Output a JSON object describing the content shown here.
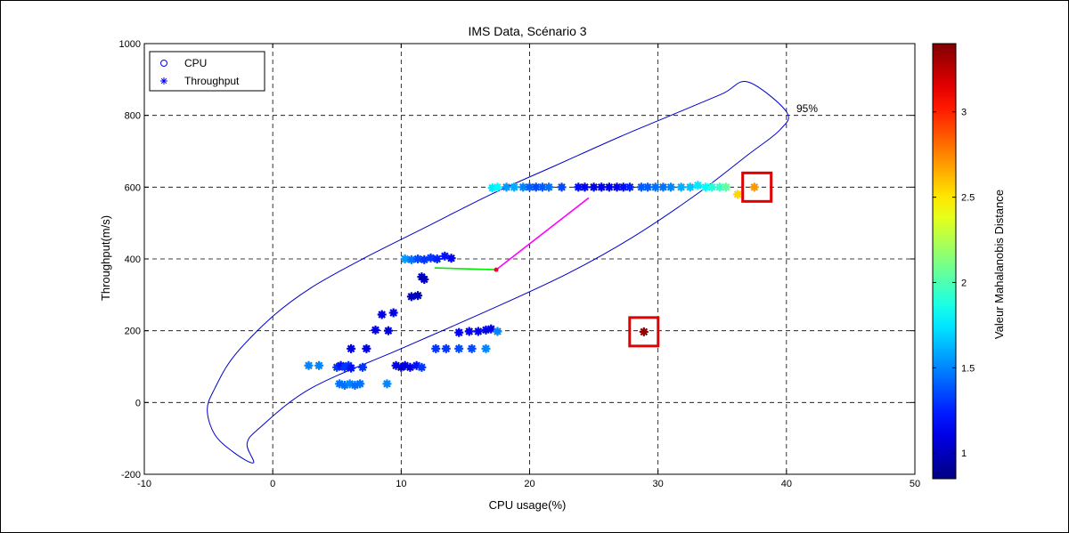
{
  "chart_data": {
    "type": "scatter",
    "title": "IMS Data, Scénario 3",
    "xlabel": "CPU usage(%)",
    "ylabel": "Throughput(m/s)",
    "xlim": [
      -10,
      50
    ],
    "ylim": [
      -200,
      1000
    ],
    "xticks": [
      "-10",
      "0",
      "10",
      "20",
      "30",
      "40",
      "50"
    ],
    "yticks": [
      "-200",
      "0",
      "200",
      "400",
      "600",
      "800",
      "1000"
    ],
    "grid": true,
    "legend": {
      "placement": "top-left",
      "entries": [
        "CPU",
        "Throughput"
      ]
    },
    "colorbar": {
      "label": "Valeur Mahalanobis Distance",
      "range": [
        0.85,
        3.4
      ],
      "ticks": [
        "1",
        "1.5",
        "2",
        "2.5",
        "3"
      ]
    },
    "ellipse": {
      "label": "95%",
      "color": "#0000cc",
      "outline": [
        [
          -5.1,
          -20
        ],
        [
          -4.5,
          40
        ],
        [
          -3,
          130
        ],
        [
          0,
          240
        ],
        [
          3,
          320
        ],
        [
          7,
          400
        ],
        [
          12,
          490
        ],
        [
          17,
          580
        ],
        [
          22,
          660
        ],
        [
          27,
          740
        ],
        [
          31,
          800
        ],
        [
          35,
          860
        ],
        [
          37,
          893
        ],
        [
          40,
          810
        ],
        [
          39.5,
          760
        ],
        [
          37,
          690
        ],
        [
          33,
          580
        ],
        [
          28,
          460
        ],
        [
          23,
          360
        ],
        [
          17,
          260
        ],
        [
          10,
          150
        ],
        [
          3,
          40
        ],
        [
          -1,
          -70
        ],
        [
          -2,
          -115
        ],
        [
          -1.5,
          -168
        ],
        [
          -3,
          -140
        ],
        [
          -4.5,
          -90
        ]
      ]
    },
    "series": [
      {
        "name": "Throughput",
        "marker": "star",
        "points": [
          [
            2.8,
            103,
            1.5
          ],
          [
            3.6,
            103,
            1.5
          ],
          [
            5,
            98,
            1.3
          ],
          [
            5.3,
            103,
            1.2
          ],
          [
            5.6,
            98,
            1.3
          ],
          [
            5.9,
            103,
            1.3
          ],
          [
            6.1,
            96,
            1.2
          ],
          [
            7,
            98,
            1.3
          ],
          [
            6.1,
            150,
            1.1
          ],
          [
            7.3,
            150,
            1.1
          ],
          [
            5.2,
            52,
            1.45
          ],
          [
            5.6,
            48,
            1.45
          ],
          [
            6,
            52,
            1.5
          ],
          [
            6.4,
            48,
            1.45
          ],
          [
            6.8,
            52,
            1.45
          ],
          [
            8.9,
            52,
            1.5
          ],
          [
            8,
            202,
            1.1
          ],
          [
            9,
            200,
            1.05
          ],
          [
            8.5,
            245,
            1.1
          ],
          [
            9.4,
            250,
            1.1
          ],
          [
            9.6,
            103,
            1.1
          ],
          [
            10,
            98,
            1.05
          ],
          [
            10.3,
            103,
            1.1
          ],
          [
            10.7,
            98,
            1.1
          ],
          [
            11.2,
            103,
            1.2
          ],
          [
            11.6,
            98,
            1.3
          ],
          [
            10.8,
            295,
            1.0
          ],
          [
            11.3,
            298,
            1.0
          ],
          [
            11.6,
            350,
            1.0
          ],
          [
            11.8,
            343,
            1.0
          ],
          [
            10.3,
            400,
            1.55
          ],
          [
            10.8,
            398,
            1.45
          ],
          [
            11.3,
            400,
            1.35
          ],
          [
            11.8,
            398,
            1.3
          ],
          [
            12.3,
            403,
            1.3
          ],
          [
            12.8,
            400,
            1.25
          ],
          [
            13.4,
            408,
            1.2
          ],
          [
            13.9,
            402,
            1.15
          ],
          [
            12.7,
            150,
            1.3
          ],
          [
            13.5,
            150,
            1.3
          ],
          [
            14.5,
            150,
            1.35
          ],
          [
            15.5,
            150,
            1.35
          ],
          [
            16.6,
            150,
            1.5
          ],
          [
            14.5,
            195,
            1.15
          ],
          [
            15.3,
            198,
            1.15
          ],
          [
            16,
            198,
            1.15
          ],
          [
            16.6,
            202,
            1.1
          ],
          [
            17,
            205,
            1.1
          ],
          [
            17.5,
            198,
            1.5
          ],
          [
            17.1,
            598,
            1.75
          ],
          [
            17.5,
            600,
            1.8
          ],
          [
            18.2,
            600,
            1.55
          ],
          [
            18.8,
            600,
            1.6
          ],
          [
            19.5,
            600,
            1.5
          ],
          [
            20,
            600,
            1.4
          ],
          [
            20.5,
            600,
            1.35
          ],
          [
            21,
            600,
            1.4
          ],
          [
            21.5,
            600,
            1.45
          ],
          [
            22.5,
            600,
            1.35
          ],
          [
            23.8,
            600,
            1.2
          ],
          [
            24.3,
            600,
            1.15
          ],
          [
            25,
            600,
            1.1
          ],
          [
            25.6,
            600,
            1.1
          ],
          [
            26.2,
            600,
            1.1
          ],
          [
            26.8,
            600,
            1.15
          ],
          [
            27.3,
            600,
            1.2
          ],
          [
            27.8,
            600,
            1.25
          ],
          [
            28.7,
            600,
            1.4
          ],
          [
            29.2,
            600,
            1.4
          ],
          [
            29.8,
            600,
            1.45
          ],
          [
            30.4,
            600,
            1.45
          ],
          [
            31,
            600,
            1.5
          ],
          [
            31.8,
            600,
            1.6
          ],
          [
            32.5,
            600,
            1.65
          ],
          [
            33.1,
            605,
            1.75
          ],
          [
            33.7,
            600,
            1.8
          ],
          [
            34.2,
            600,
            1.9
          ],
          [
            34.8,
            600,
            1.95
          ],
          [
            35.3,
            600,
            2.05
          ],
          [
            36.2,
            580,
            2.55
          ],
          [
            37.5,
            600,
            2.7
          ],
          [
            28.9,
            197,
            3.35
          ]
        ]
      }
    ],
    "trajectory": [
      {
        "color": "#00ee00",
        "from": [
          12.6,
          375
        ],
        "to": [
          17.4,
          370
        ]
      },
      {
        "color": "#ff00ff",
        "from": [
          17.4,
          370
        ],
        "to": [
          24.6,
          570
        ]
      }
    ],
    "highlight_boxes": [
      {
        "color": "#e00000",
        "center": [
          37.7,
          600
        ]
      },
      {
        "color": "#e00000",
        "center": [
          28.9,
          197
        ]
      }
    ]
  }
}
